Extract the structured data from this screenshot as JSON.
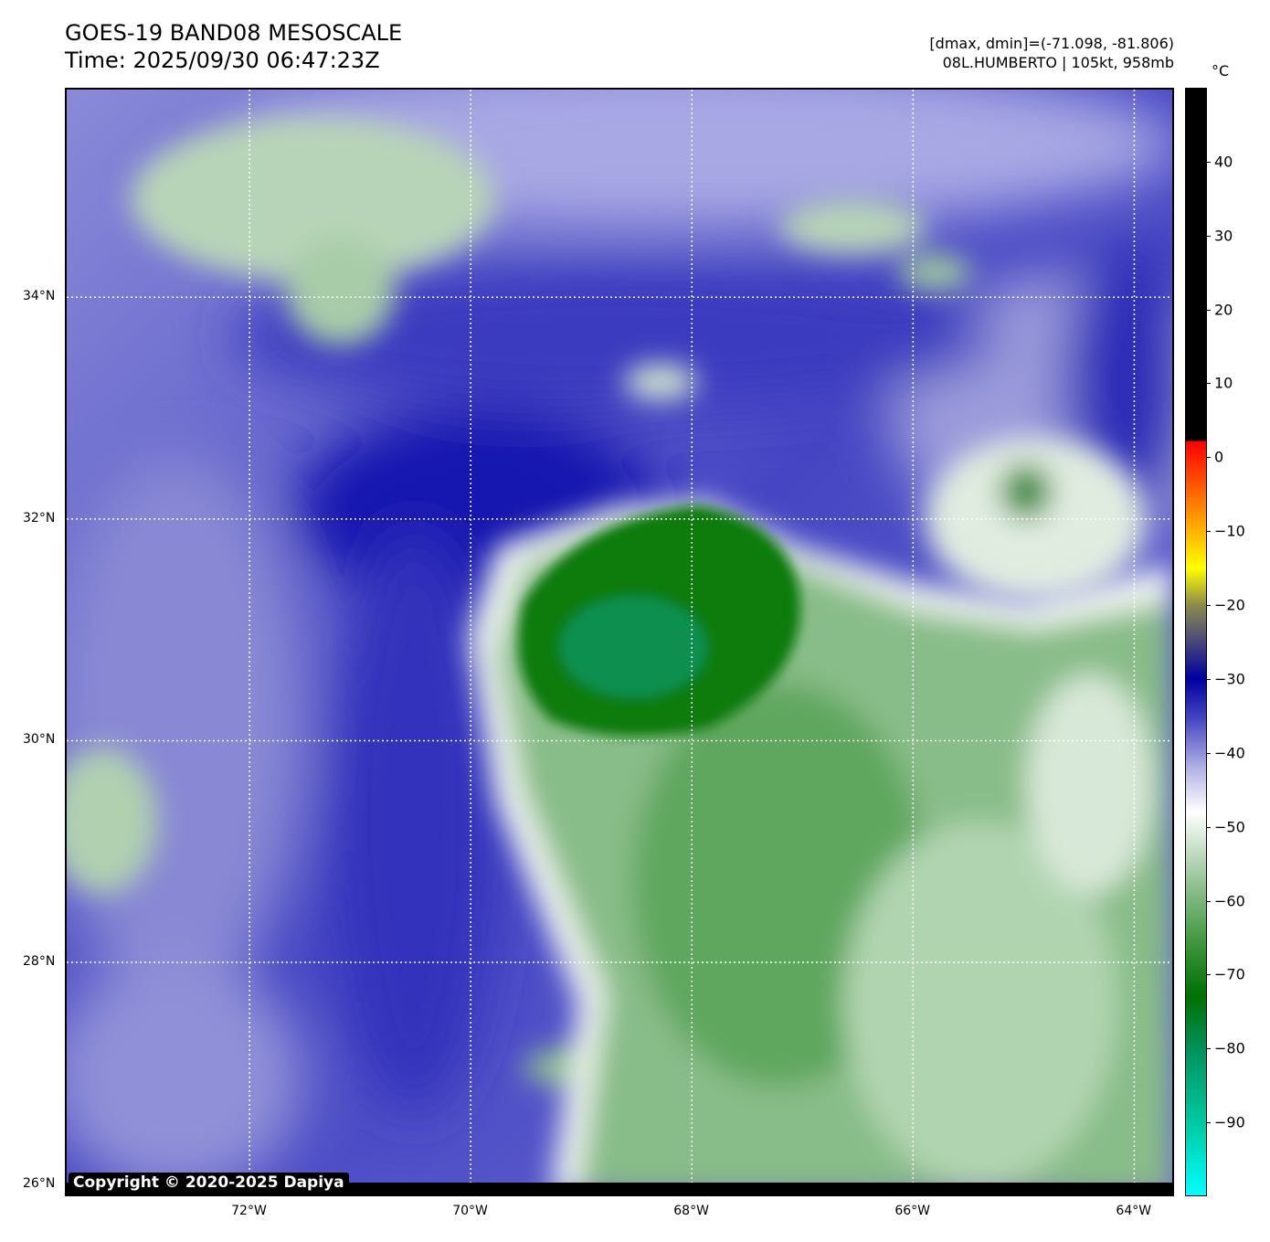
{
  "header": {
    "title": "GOES-19 BAND08 MESOSCALE",
    "time": "Time: 2025/09/30 06:47:23Z",
    "range_text": "[dmax, dmin]=(-71.098, -81.806)",
    "storm_text": "08L.HUMBERTO | 105kt, 958mb"
  },
  "map": {
    "extent": {
      "lon_min": -73.67,
      "lon_max": -63.64,
      "lat_min": 25.89,
      "lat_max": 35.89
    },
    "lon_ticks": [
      {
        "value": -72,
        "label": "72°W"
      },
      {
        "value": -70,
        "label": "70°W"
      },
      {
        "value": -68,
        "label": "68°W"
      },
      {
        "value": -66,
        "label": "66°W"
      },
      {
        "value": -64,
        "label": "64°W"
      }
    ],
    "lat_ticks": [
      {
        "value": 34,
        "label": "34°N"
      },
      {
        "value": 32,
        "label": "32°N"
      },
      {
        "value": 30,
        "label": "30°N"
      },
      {
        "value": 28,
        "label": "28°N"
      },
      {
        "value": 26,
        "label": "26°N"
      }
    ],
    "copyright": "Copyright © 2020-2025 Dapiya"
  },
  "colorbar": {
    "unit": "°C",
    "range": [
      -100,
      50
    ],
    "ticks": [
      {
        "value": 40,
        "label": "40"
      },
      {
        "value": 30,
        "label": "30"
      },
      {
        "value": 20,
        "label": "20"
      },
      {
        "value": 10,
        "label": "10"
      },
      {
        "value": 0,
        "label": "0"
      },
      {
        "value": -10,
        "label": "−10"
      },
      {
        "value": -20,
        "label": "−20"
      },
      {
        "value": -30,
        "label": "−30"
      },
      {
        "value": -40,
        "label": "−40"
      },
      {
        "value": -50,
        "label": "−50"
      },
      {
        "value": -60,
        "label": "−60"
      },
      {
        "value": -70,
        "label": "−70"
      },
      {
        "value": -80,
        "label": "−80"
      },
      {
        "value": -90,
        "label": "−90"
      }
    ],
    "stops": [
      {
        "value": 50,
        "color": "#000000"
      },
      {
        "value": 2.3,
        "color": "#000000"
      },
      {
        "value": 2.2,
        "color": "#ff0000"
      },
      {
        "value": -7,
        "color": "#ff8800"
      },
      {
        "value": -15,
        "color": "#ffff00"
      },
      {
        "value": -20,
        "color": "#8c8a4c"
      },
      {
        "value": -24,
        "color": "#555570"
      },
      {
        "value": -30,
        "color": "#0000a0"
      },
      {
        "value": -35,
        "color": "#4040c0"
      },
      {
        "value": -42,
        "color": "#b0b0e4"
      },
      {
        "value": -48,
        "color": "#ffffff"
      },
      {
        "value": -58,
        "color": "#90c090"
      },
      {
        "value": -66,
        "color": "#3c963c"
      },
      {
        "value": -73,
        "color": "#007000"
      },
      {
        "value": -80,
        "color": "#00905a"
      },
      {
        "value": -90,
        "color": "#00c8a0"
      },
      {
        "value": -100,
        "color": "#00ffff"
      }
    ]
  }
}
